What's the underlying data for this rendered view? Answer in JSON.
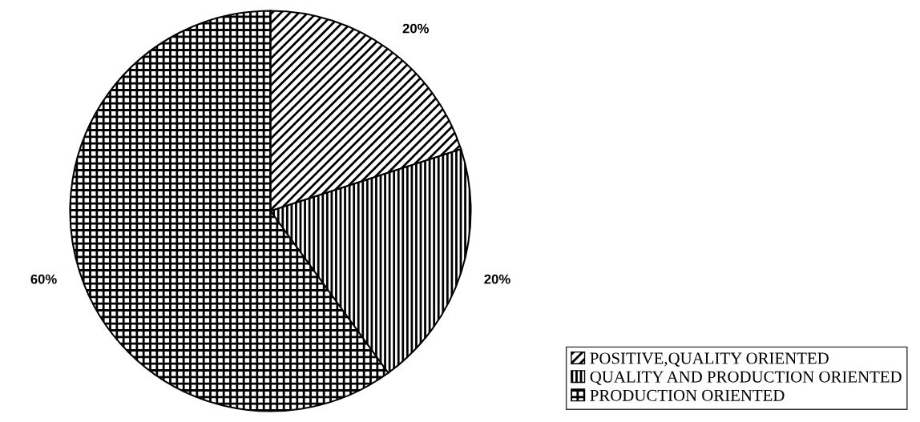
{
  "chart_data": {
    "type": "pie",
    "categories": [
      "POSITIVE,QUALITY ORIENTED",
      "QUALITY AND PRODUCTION ORIENTED",
      "PRODUCTION ORIENTED"
    ],
    "values": [
      20,
      20,
      60
    ],
    "value_labels": [
      "20%",
      "20%",
      "60%"
    ],
    "colors": [
      "#000000",
      "#000000",
      "#000000"
    ],
    "legend": "bottom right"
  }
}
